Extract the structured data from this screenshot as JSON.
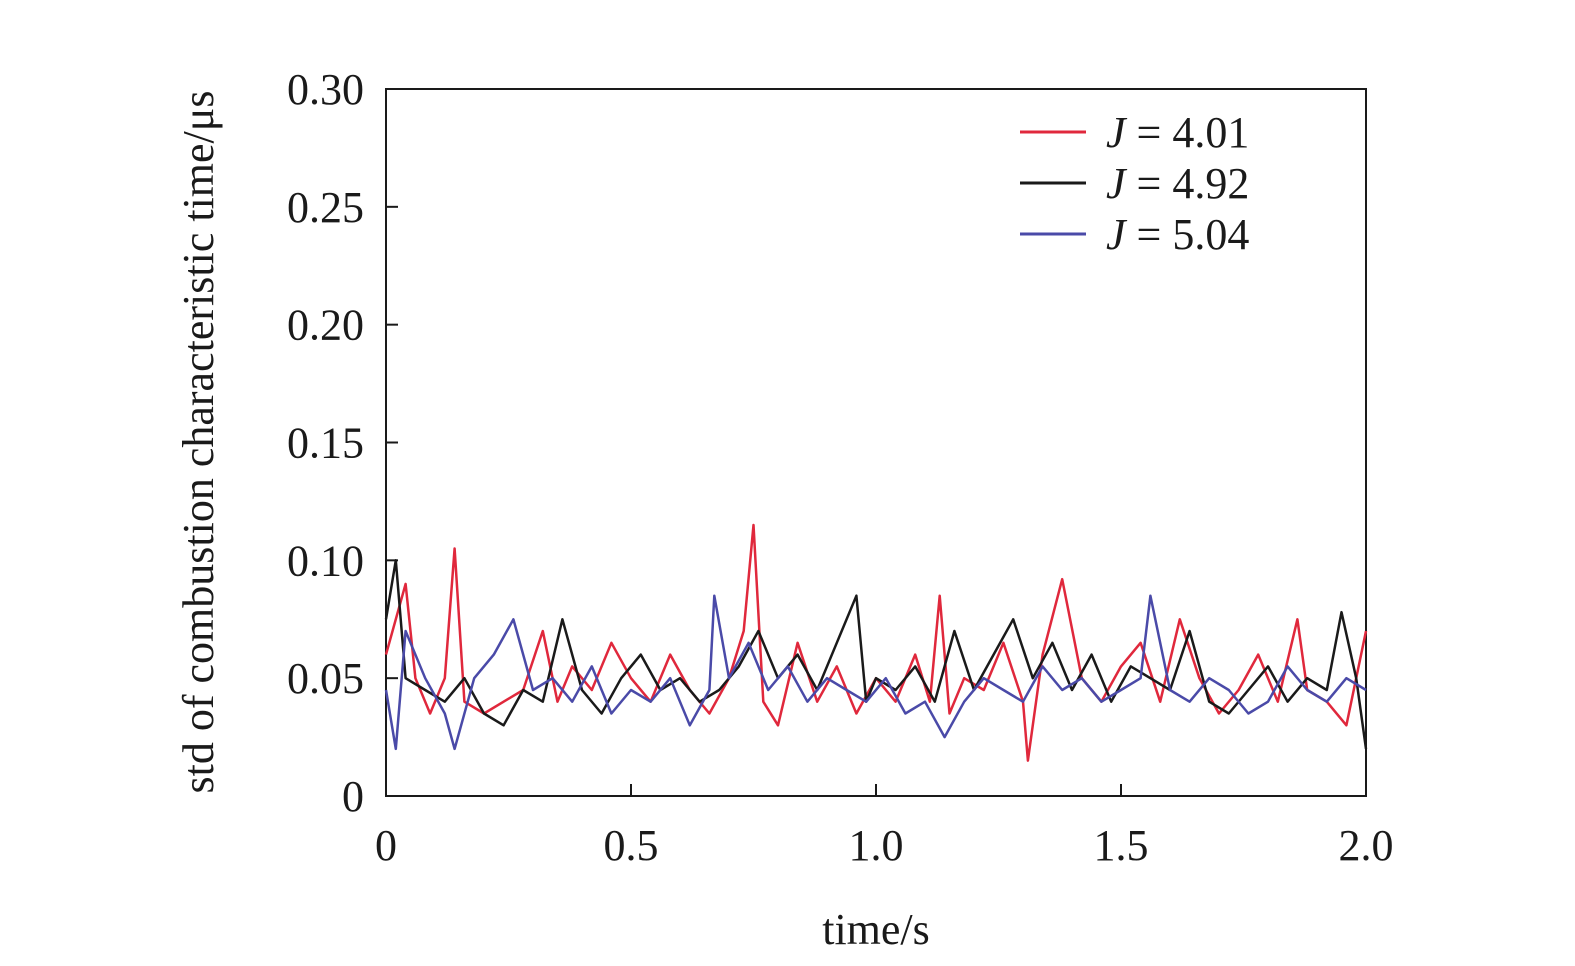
{
  "chart_data": {
    "type": "line",
    "title": "",
    "xlabel": "time/s",
    "ylabel": "std of combustion characteristic time/μs",
    "xlim": [
      0,
      2.0
    ],
    "ylim": [
      0,
      0.3
    ],
    "xticks": [
      0,
      0.5,
      1.0,
      1.5,
      2.0
    ],
    "xtick_labels": [
      "0",
      "0.5",
      "1.0",
      "1.5",
      "2.0"
    ],
    "yticks": [
      0,
      0.05,
      0.1,
      0.15,
      0.2,
      0.25,
      0.3
    ],
    "ytick_labels": [
      "0",
      "0.05",
      "0.10",
      "0.15",
      "0.20",
      "0.25",
      "0.30"
    ],
    "grid": false,
    "legend_position": "top-right",
    "legend_var": "J",
    "legend_eq": " = ",
    "series": [
      {
        "name": "J = 4.01",
        "label_value": "4.01",
        "color": "#e0283c",
        "x": [
          0,
          0.04,
          0.06,
          0.09,
          0.12,
          0.14,
          0.16,
          0.2,
          0.24,
          0.28,
          0.32,
          0.35,
          0.38,
          0.42,
          0.46,
          0.5,
          0.54,
          0.58,
          0.62,
          0.66,
          0.7,
          0.73,
          0.75,
          0.77,
          0.8,
          0.84,
          0.88,
          0.92,
          0.96,
          1.0,
          1.04,
          1.08,
          1.11,
          1.13,
          1.15,
          1.18,
          1.22,
          1.26,
          1.3,
          1.31,
          1.34,
          1.38,
          1.42,
          1.46,
          1.5,
          1.54,
          1.58,
          1.62,
          1.66,
          1.7,
          1.74,
          1.78,
          1.82,
          1.86,
          1.88,
          1.92,
          1.96,
          2.0
        ],
        "y": [
          0.06,
          0.09,
          0.05,
          0.035,
          0.05,
          0.105,
          0.04,
          0.035,
          0.04,
          0.045,
          0.07,
          0.04,
          0.055,
          0.045,
          0.065,
          0.05,
          0.04,
          0.06,
          0.045,
          0.035,
          0.05,
          0.07,
          0.115,
          0.04,
          0.03,
          0.065,
          0.04,
          0.055,
          0.035,
          0.05,
          0.04,
          0.06,
          0.04,
          0.085,
          0.035,
          0.05,
          0.045,
          0.065,
          0.04,
          0.015,
          0.06,
          0.092,
          0.05,
          0.04,
          0.055,
          0.065,
          0.04,
          0.075,
          0.05,
          0.035,
          0.045,
          0.06,
          0.04,
          0.075,
          0.045,
          0.04,
          0.03,
          0.07
        ]
      },
      {
        "name": "J = 4.92",
        "label_value": "4.92",
        "color": "#1a1a1a",
        "x": [
          0,
          0.02,
          0.04,
          0.08,
          0.12,
          0.16,
          0.2,
          0.24,
          0.28,
          0.32,
          0.36,
          0.4,
          0.44,
          0.48,
          0.52,
          0.56,
          0.6,
          0.64,
          0.68,
          0.72,
          0.76,
          0.8,
          0.84,
          0.88,
          0.92,
          0.96,
          0.98,
          1.0,
          1.04,
          1.08,
          1.12,
          1.16,
          1.2,
          1.24,
          1.28,
          1.32,
          1.36,
          1.4,
          1.44,
          1.48,
          1.52,
          1.56,
          1.6,
          1.64,
          1.68,
          1.72,
          1.76,
          1.8,
          1.84,
          1.88,
          1.92,
          1.95,
          1.98,
          2.0
        ],
        "y": [
          0.075,
          0.1,
          0.05,
          0.045,
          0.04,
          0.05,
          0.035,
          0.03,
          0.045,
          0.04,
          0.075,
          0.045,
          0.035,
          0.05,
          0.06,
          0.045,
          0.05,
          0.04,
          0.045,
          0.055,
          0.07,
          0.05,
          0.06,
          0.045,
          0.065,
          0.085,
          0.04,
          0.05,
          0.045,
          0.055,
          0.04,
          0.07,
          0.045,
          0.06,
          0.075,
          0.05,
          0.065,
          0.045,
          0.06,
          0.04,
          0.055,
          0.05,
          0.045,
          0.07,
          0.04,
          0.035,
          0.045,
          0.055,
          0.04,
          0.05,
          0.045,
          0.078,
          0.05,
          0.02
        ]
      },
      {
        "name": "J = 5.04",
        "label_value": "5.04",
        "color": "#4a4aa8",
        "x": [
          0,
          0.02,
          0.04,
          0.08,
          0.12,
          0.14,
          0.18,
          0.22,
          0.26,
          0.3,
          0.34,
          0.38,
          0.42,
          0.46,
          0.5,
          0.54,
          0.58,
          0.62,
          0.66,
          0.67,
          0.7,
          0.74,
          0.78,
          0.82,
          0.86,
          0.9,
          0.94,
          0.98,
          1.02,
          1.06,
          1.1,
          1.14,
          1.18,
          1.22,
          1.26,
          1.3,
          1.34,
          1.38,
          1.42,
          1.46,
          1.5,
          1.54,
          1.56,
          1.6,
          1.64,
          1.68,
          1.72,
          1.76,
          1.8,
          1.84,
          1.88,
          1.92,
          1.96,
          2.0
        ],
        "y": [
          0.045,
          0.02,
          0.07,
          0.05,
          0.035,
          0.02,
          0.05,
          0.06,
          0.075,
          0.045,
          0.05,
          0.04,
          0.055,
          0.035,
          0.045,
          0.04,
          0.05,
          0.03,
          0.045,
          0.085,
          0.05,
          0.065,
          0.045,
          0.055,
          0.04,
          0.05,
          0.045,
          0.04,
          0.05,
          0.035,
          0.04,
          0.025,
          0.04,
          0.05,
          0.045,
          0.04,
          0.055,
          0.045,
          0.05,
          0.04,
          0.045,
          0.05,
          0.085,
          0.045,
          0.04,
          0.05,
          0.045,
          0.035,
          0.04,
          0.055,
          0.045,
          0.04,
          0.05,
          0.045
        ]
      }
    ]
  }
}
